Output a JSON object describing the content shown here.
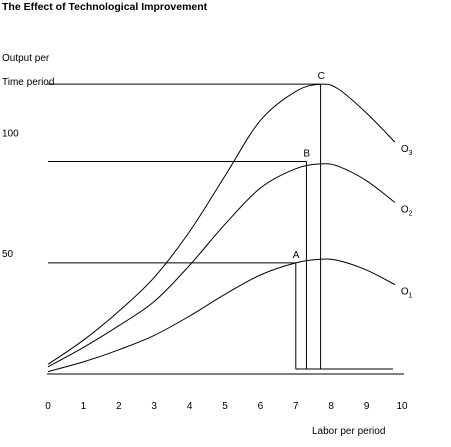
{
  "chart_data": {
    "type": "line",
    "title": "The Effect of Technological Improvement",
    "ylabel_line1": "Output per",
    "ylabel_line2": "Time period",
    "xlabel": "Labor per period",
    "x_ticks": [
      0,
      1,
      2,
      3,
      4,
      5,
      6,
      7,
      8,
      9,
      10
    ],
    "y_ticks": [
      50,
      100
    ],
    "xlim": [
      0,
      10
    ],
    "ylim": [
      0,
      130
    ],
    "grid": false,
    "series": [
      {
        "name": "O1",
        "x": [
          0,
          1,
          2,
          3,
          4,
          5,
          6,
          7,
          7.7,
          8.2,
          9,
          9.8
        ],
        "values": [
          1,
          5,
          10,
          16,
          24,
          33,
          41,
          46,
          47.5,
          47,
          43,
          37
        ]
      },
      {
        "name": "O2",
        "x": [
          0,
          1,
          2,
          3,
          4,
          5,
          6,
          7,
          7.7,
          8.2,
          9,
          9.8
        ],
        "values": [
          3,
          11,
          20,
          30,
          45,
          62,
          77,
          85,
          87,
          86,
          80,
          71
        ]
      },
      {
        "name": "O3",
        "x": [
          0,
          1,
          2,
          3,
          4,
          5,
          6,
          7,
          7.7,
          8.2,
          9,
          9.8
        ],
        "values": [
          4,
          14,
          26,
          40,
          59,
          82,
          105,
          117,
          120,
          118,
          108,
          96
        ]
      }
    ],
    "points": [
      {
        "label": "A",
        "x": 7,
        "y": 46
      },
      {
        "label": "B",
        "x": 7.3,
        "y": 88
      },
      {
        "label": "C",
        "x": 7.7,
        "y": 120
      }
    ]
  }
}
